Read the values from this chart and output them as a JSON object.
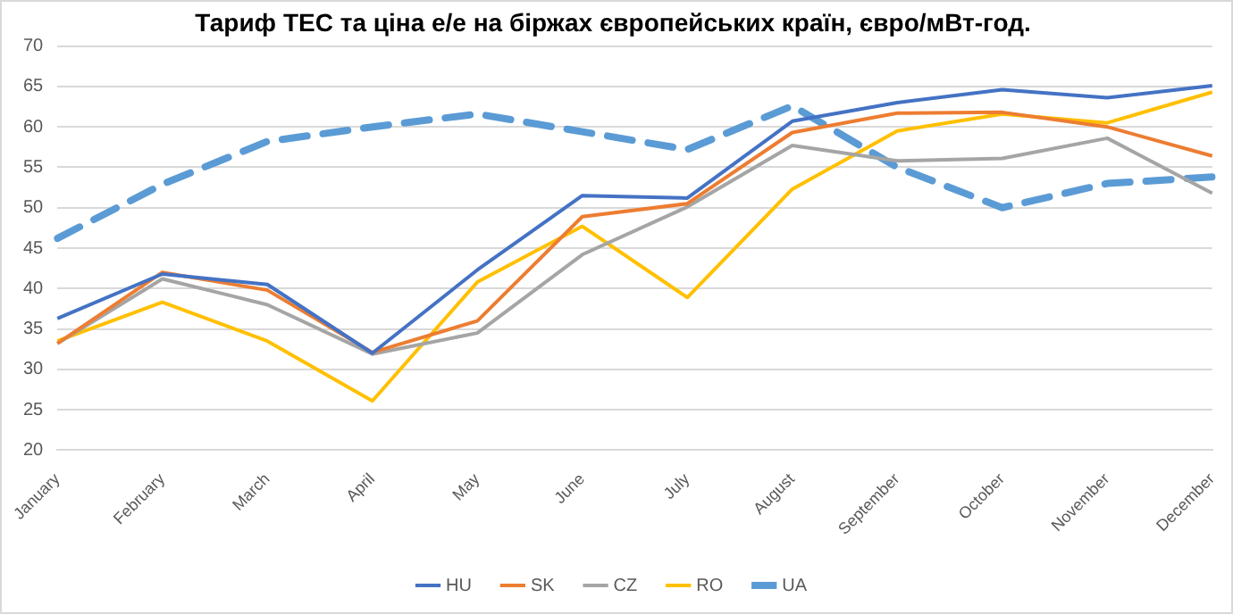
{
  "chart_data": {
    "type": "line",
    "title": "Тариф ТЕС та ціна е/е на біржах європейських країн, євро/мВт-год.",
    "categories": [
      "January",
      "February",
      "March",
      "April",
      "May",
      "June",
      "July",
      "August",
      "September",
      "October",
      "November",
      "December"
    ],
    "series": [
      {
        "name": "HU",
        "color": "#4472c4",
        "values": [
          36.3,
          41.8,
          40.5,
          32,
          42.3,
          51.5,
          51.2,
          60.7,
          63,
          64.6,
          63.6,
          65.1
        ]
      },
      {
        "name": "SK",
        "color": "#ed7d31",
        "values": [
          33.2,
          42,
          39.8,
          32.1,
          36,
          48.9,
          50.5,
          59.3,
          61.7,
          61.8,
          60,
          56.4
        ]
      },
      {
        "name": "CZ",
        "color": "#a5a5a5",
        "values": [
          33.2,
          41.2,
          38,
          31.9,
          34.5,
          44.2,
          50.1,
          57.7,
          55.8,
          56.1,
          58.6,
          51.8
        ]
      },
      {
        "name": "RO",
        "color": "#ffc000",
        "values": [
          33.5,
          38.3,
          33.5,
          26.1,
          40.8,
          47.7,
          38.9,
          52.3,
          59.5,
          61.6,
          60.5,
          64.3
        ]
      },
      {
        "name": "UA",
        "color": "#5b9bd5",
        "line_style": "dashed",
        "values": [
          46.2,
          52.9,
          58.2,
          60,
          61.6,
          59.4,
          57.2,
          62.6,
          55,
          50,
          53,
          53.8
        ]
      }
    ],
    "ylim": [
      20,
      70
    ],
    "yticks": [
      20,
      25,
      30,
      35,
      40,
      45,
      50,
      55,
      60,
      65,
      70
    ],
    "grid": "y",
    "legend": "bottom",
    "marker": "none"
  }
}
